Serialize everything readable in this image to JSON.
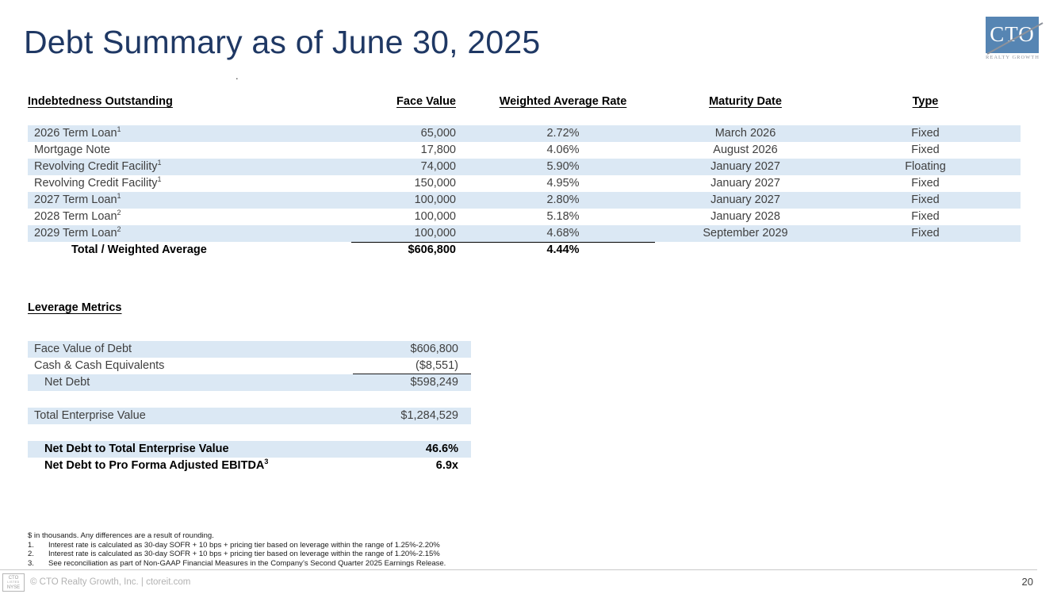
{
  "slide": {
    "title": "Debt Summary as of June 30, 2025",
    "stray_dot": ".",
    "page_number": "20",
    "footer_text": "© CTO Realty Growth, Inc. | ctoreit.com"
  },
  "logo": {
    "acronym": "CTO",
    "subtext": "REALTY GROWTH",
    "badge": {
      "line1": "CTO",
      "line2": "LISTED",
      "line3": "NYSE"
    }
  },
  "debt_table": {
    "headers": {
      "name": "Indebtedness Outstanding",
      "face_value": "Face Value",
      "rate": "Weighted Average Rate",
      "maturity": "Maturity Date",
      "type": "Type"
    },
    "rows": [
      {
        "name": "2026 Term Loan",
        "sup": "1",
        "face_value": "65,000",
        "rate": "2.72%",
        "maturity": "March 2026",
        "type": "Fixed"
      },
      {
        "name": "Mortgage Note",
        "sup": "",
        "face_value": "17,800",
        "rate": "4.06%",
        "maturity": "August 2026",
        "type": "Fixed"
      },
      {
        "name": "Revolving Credit Facility",
        "sup": "1",
        "face_value": "74,000",
        "rate": "5.90%",
        "maturity": "January 2027",
        "type": "Floating"
      },
      {
        "name": "Revolving Credit Facility",
        "sup": "1",
        "face_value": "150,000",
        "rate": "4.95%",
        "maturity": "January 2027",
        "type": "Fixed"
      },
      {
        "name": "2027 Term Loan",
        "sup": "1",
        "face_value": "100,000",
        "rate": "2.80%",
        "maturity": "January 2027",
        "type": "Fixed"
      },
      {
        "name": "2028 Term Loan",
        "sup": "2",
        "face_value": "100,000",
        "rate": "5.18%",
        "maturity": "January 2028",
        "type": "Fixed"
      },
      {
        "name": "2029 Term Loan",
        "sup": "2",
        "face_value": "100,000",
        "rate": "4.68%",
        "maturity": "September 2029",
        "type": "Fixed"
      }
    ],
    "total": {
      "label": "Total / Weighted Average",
      "face_value": "$606,800",
      "rate": "4.44%"
    }
  },
  "leverage": {
    "heading": "Leverage Metrics",
    "rows": [
      {
        "label": "Face Value of Debt",
        "sup": "",
        "value": "$606,800",
        "striped": true,
        "bold": false,
        "indent": false,
        "underline_below": false
      },
      {
        "label": "Cash & Cash Equivalents",
        "sup": "",
        "value": "($8,551)",
        "striped": false,
        "bold": false,
        "indent": false,
        "underline_below": true
      },
      {
        "label": "Net Debt",
        "sup": "",
        "value": "$598,249",
        "striped": true,
        "bold": false,
        "indent": true,
        "underline_below": false
      },
      {
        "spacer": true
      },
      {
        "label": "Total Enterprise Value",
        "sup": "",
        "value": "$1,284,529",
        "striped": true,
        "bold": false,
        "indent": false,
        "underline_below": false
      },
      {
        "spacer": true
      },
      {
        "label": "Net Debt to Total Enterprise Value",
        "sup": "",
        "value": "46.6%",
        "striped": true,
        "bold": true,
        "indent": true,
        "underline_below": false
      },
      {
        "label": "Net Debt to Pro Forma Adjusted EBITDA",
        "sup": "3",
        "value": "6.9x",
        "striped": false,
        "bold": true,
        "indent": true,
        "underline_below": false
      }
    ]
  },
  "footnotes": {
    "intro": "$ in thousands.  Any differences are a result of rounding.",
    "items": [
      {
        "num": "1.",
        "text": "Interest rate is calculated as 30-day SOFR + 10 bps + pricing tier based on leverage within the range of 1.25%-2.20%"
      },
      {
        "num": "2.",
        "text": "Interest rate is calculated as 30-day SOFR + 10 bps + pricing tier based on leverage within the range of 1.20%-2.15%"
      },
      {
        "num": "3.",
        "text": "See reconciliation as part of Non-GAAP Financial Measures in the Company’s Second Quarter 2025 Earnings Release."
      }
    ]
  },
  "colors": {
    "stripe": "#dbe8f4",
    "navy": "#1f3864",
    "logo_blue": "#5685b3",
    "swoosh_gray": "#8d929b"
  }
}
